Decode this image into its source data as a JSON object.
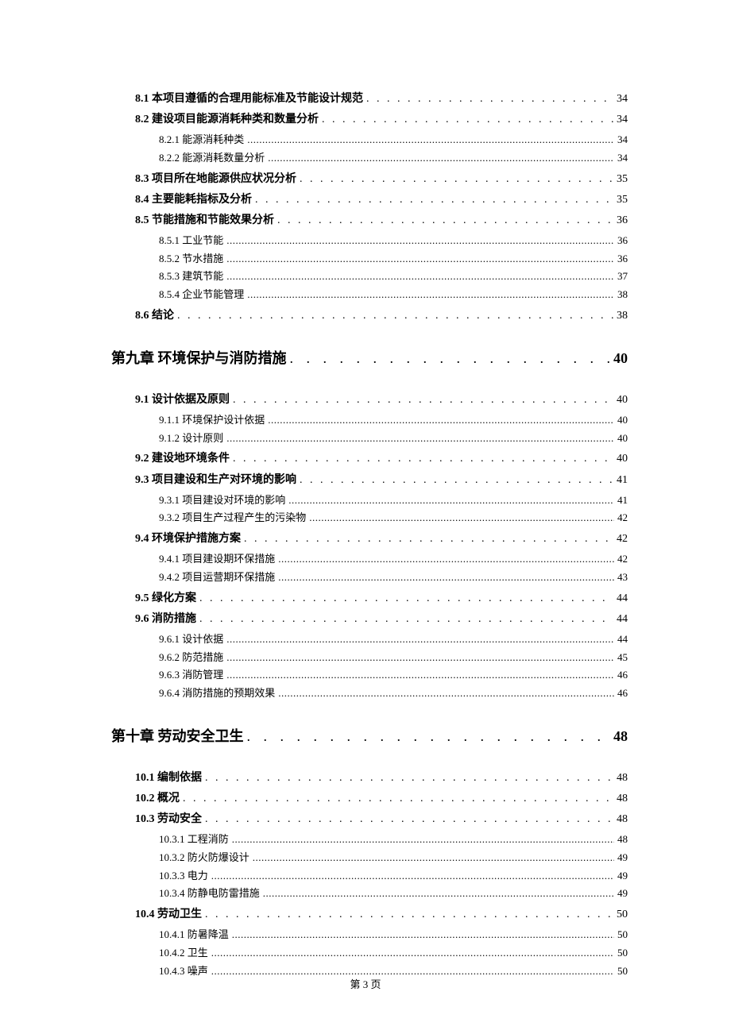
{
  "page": {
    "footer": "第 3 页",
    "background_color": "#ffffff",
    "text_color": "#000000"
  },
  "toc": {
    "entries": [
      {
        "level": "section",
        "text": "8.1 本项目遵循的合理用能标准及节能设计规范",
        "page": "34"
      },
      {
        "level": "section",
        "text": "8.2 建设项目能源消耗种类和数量分析",
        "page": "34"
      },
      {
        "level": "sub",
        "text": "8.2.1 能源消耗种类",
        "page": "34"
      },
      {
        "level": "sub",
        "text": "8.2.2 能源消耗数量分析",
        "page": "34"
      },
      {
        "level": "section",
        "text": "8.3 项目所在地能源供应状况分析",
        "page": "35"
      },
      {
        "level": "section",
        "text": "8.4 主要能耗指标及分析",
        "page": "35"
      },
      {
        "level": "section",
        "text": "8.5 节能措施和节能效果分析",
        "page": "36"
      },
      {
        "level": "sub",
        "text": "8.5.1 工业节能",
        "page": "36"
      },
      {
        "level": "sub",
        "text": "8.5.2 节水措施",
        "page": "36"
      },
      {
        "level": "sub",
        "text": "8.5.3 建筑节能",
        "page": "37"
      },
      {
        "level": "sub",
        "text": "8.5.4 企业节能管理",
        "page": "38"
      },
      {
        "level": "section",
        "text": "8.6 结论",
        "page": "38"
      },
      {
        "level": "chapter",
        "text": "第九章  环境保护与消防措施",
        "page": "40"
      },
      {
        "level": "section",
        "text": "9.1 设计依据及原则",
        "page": "40"
      },
      {
        "level": "sub",
        "text": "9.1.1 环境保护设计依据",
        "page": "40"
      },
      {
        "level": "sub",
        "text": "9.1.2 设计原则",
        "page": "40"
      },
      {
        "level": "section",
        "text": "9.2 建设地环境条件",
        "page": "40"
      },
      {
        "level": "section",
        "text": "9.3  项目建设和生产对环境的影响",
        "page": "41"
      },
      {
        "level": "sub",
        "text": "9.3.1  项目建设对环境的影响",
        "page": "41"
      },
      {
        "level": "sub",
        "text": "9.3.2 项目生产过程产生的污染物",
        "page": "42"
      },
      {
        "level": "section",
        "text": "9.4  环境保护措施方案",
        "page": "42"
      },
      {
        "level": "sub",
        "text": "9.4.1  项目建设期环保措施",
        "page": "42"
      },
      {
        "level": "sub",
        "text": "9.4.2  项目运营期环保措施",
        "page": "43"
      },
      {
        "level": "section",
        "text": "9.5 绿化方案",
        "page": "44"
      },
      {
        "level": "section",
        "text": "9.6 消防措施",
        "page": "44"
      },
      {
        "level": "sub",
        "text": "9.6.1 设计依据",
        "page": "44"
      },
      {
        "level": "sub",
        "text": "9.6.2 防范措施",
        "page": "45"
      },
      {
        "level": "sub",
        "text": "9.6.3 消防管理",
        "page": "46"
      },
      {
        "level": "sub",
        "text": "9.6.4 消防措施的预期效果",
        "page": "46"
      },
      {
        "level": "chapter",
        "text": "第十章  劳动安全卫生",
        "page": "48"
      },
      {
        "level": "section",
        "text": "10.1  编制依据",
        "page": "48"
      },
      {
        "level": "section",
        "text": "10.2 概况",
        "page": "48"
      },
      {
        "level": "section",
        "text": "10.3  劳动安全",
        "page": "48"
      },
      {
        "level": "sub",
        "text": "10.3.1 工程消防",
        "page": "48"
      },
      {
        "level": "sub",
        "text": "10.3.2 防火防爆设计",
        "page": "49"
      },
      {
        "level": "sub",
        "text": "10.3.3 电力",
        "page": "49"
      },
      {
        "level": "sub",
        "text": "10.3.4 防静电防雷措施",
        "page": "49"
      },
      {
        "level": "section",
        "text": "10.4 劳动卫生",
        "page": "50"
      },
      {
        "level": "sub",
        "text": "10.4.1 防暑降温",
        "page": "50"
      },
      {
        "level": "sub",
        "text": "10.4.2 卫生",
        "page": "50"
      },
      {
        "level": "sub",
        "text": "10.4.3 噪声",
        "page": "50"
      }
    ]
  }
}
